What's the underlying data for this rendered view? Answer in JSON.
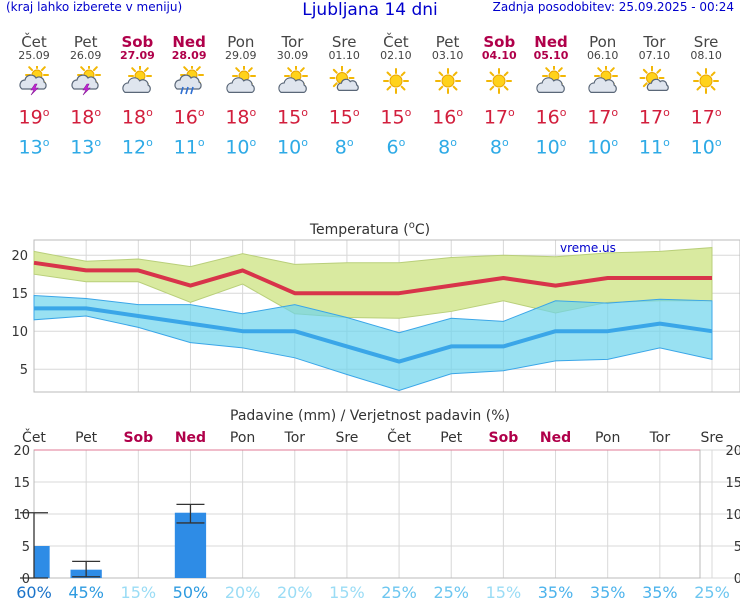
{
  "header": {
    "left_note": "(kraj lahko izberete v meniju)",
    "title": "Ljubljana 14 dni",
    "last_update": "Zadnja posodobitev: 25.09.2025 - 00:24"
  },
  "days": [
    {
      "name": "Čet",
      "date": "25.09",
      "weekend": false,
      "icon": "sun-cloud-thunder-icon",
      "tmax": "19",
      "tmin": "13"
    },
    {
      "name": "Pet",
      "date": "26.09",
      "weekend": false,
      "icon": "sun-cloud-thunder-icon",
      "tmax": "18",
      "tmin": "13"
    },
    {
      "name": "Sob",
      "date": "27.09",
      "weekend": true,
      "icon": "sun-cloud-icon",
      "tmax": "18",
      "tmin": "12"
    },
    {
      "name": "Ned",
      "date": "28.09",
      "weekend": true,
      "icon": "sun-cloud-rain-icon",
      "tmax": "16",
      "tmin": "11"
    },
    {
      "name": "Pon",
      "date": "29.09",
      "weekend": false,
      "icon": "sun-cloud-icon",
      "tmax": "18",
      "tmin": "10"
    },
    {
      "name": "Tor",
      "date": "30.09",
      "weekend": false,
      "icon": "sun-cloud-icon",
      "tmax": "15",
      "tmin": "10"
    },
    {
      "name": "Sre",
      "date": "01.10",
      "weekend": false,
      "icon": "sun-small-cloud-icon",
      "tmax": "15",
      "tmin": "8"
    },
    {
      "name": "Čet",
      "date": "02.10",
      "weekend": false,
      "icon": "sun-icon",
      "tmax": "15",
      "tmin": "6"
    },
    {
      "name": "Pet",
      "date": "03.10",
      "weekend": false,
      "icon": "sun-icon",
      "tmax": "16",
      "tmin": "8"
    },
    {
      "name": "Sob",
      "date": "04.10",
      "weekend": true,
      "icon": "sun-icon",
      "tmax": "17",
      "tmin": "8"
    },
    {
      "name": "Ned",
      "date": "05.10",
      "weekend": true,
      "icon": "sun-cloud-icon",
      "tmax": "16",
      "tmin": "10"
    },
    {
      "name": "Pon",
      "date": "06.10",
      "weekend": false,
      "icon": "sun-cloud-icon",
      "tmax": "17",
      "tmin": "10"
    },
    {
      "name": "Tor",
      "date": "07.10",
      "weekend": false,
      "icon": "sun-small-cloud-icon",
      "tmax": "17",
      "tmin": "11"
    },
    {
      "name": "Sre",
      "date": "08.10",
      "weekend": false,
      "icon": "sun-icon",
      "tmax": "17",
      "tmin": "10"
    }
  ],
  "degree_symbol": "o",
  "chart_data": [
    {
      "type": "line",
      "title": "Temperatura (°C)",
      "title_main": "Temperatura (",
      "title_unit_sup": "o",
      "title_unit_end": "C)",
      "watermark": "vreme.us",
      "ylim": [
        2,
        22
      ],
      "yticks": [
        5,
        10,
        15,
        20
      ],
      "grid": true,
      "x": [
        0,
        1,
        2,
        3,
        4,
        5,
        6,
        7,
        8,
        9,
        10,
        11,
        12,
        13
      ],
      "series": [
        {
          "name": "max",
          "color": "#d8344a",
          "values": [
            19,
            18,
            18,
            16,
            18,
            15,
            15,
            15,
            16,
            17,
            16,
            17,
            17,
            17
          ]
        },
        {
          "name": "min",
          "color": "#3aa6e8",
          "values": [
            13,
            13,
            12,
            11,
            10,
            10,
            8,
            6,
            8,
            8,
            10,
            10,
            11,
            10
          ]
        },
        {
          "name": "max-upper",
          "values": [
            20.5,
            19.2,
            19.5,
            18.5,
            20.2,
            18.8,
            19,
            19,
            19.7,
            20,
            19.8,
            20.3,
            20.5,
            21
          ]
        },
        {
          "name": "max-lower",
          "values": [
            17.5,
            16.5,
            16.5,
            13.8,
            16.2,
            12.3,
            11.8,
            11.7,
            12.6,
            14,
            12.4,
            13.8,
            14,
            14
          ]
        },
        {
          "name": "min-upper",
          "values": [
            14.7,
            14.3,
            13.5,
            13.5,
            12.3,
            13.5,
            11.8,
            9.8,
            11.7,
            11.3,
            14,
            13.7,
            14.2,
            14
          ]
        },
        {
          "name": "min-lower",
          "values": [
            11.5,
            12,
            10.5,
            8.5,
            7.8,
            6.5,
            4.3,
            2.2,
            4.4,
            4.8,
            6.1,
            6.3,
            7.8,
            6.3
          ]
        }
      ]
    },
    {
      "type": "bar",
      "title": "Padavine (mm) / Verjetnost padavin (%)",
      "ylim": [
        0,
        20
      ],
      "yticks": [
        0,
        5,
        10,
        15,
        20
      ],
      "grid": true,
      "day_labels": [
        "Čet",
        "Pet",
        "Sob",
        "Ned",
        "Pon",
        "Tor",
        "Sre",
        "Čet",
        "Pet",
        "Sob",
        "Ned",
        "Pon",
        "Tor",
        "Sre"
      ],
      "weekend": [
        false,
        false,
        true,
        true,
        false,
        false,
        false,
        false,
        false,
        true,
        true,
        false,
        false,
        false
      ],
      "values": [
        5,
        1.3,
        0,
        10.2,
        0,
        0,
        0,
        0,
        0,
        0,
        0,
        0,
        0,
        0
      ],
      "error_low": [
        0,
        0.2,
        0,
        8.6,
        0,
        0,
        0,
        0,
        0,
        0,
        0,
        0,
        0,
        0
      ],
      "error_high": [
        10.2,
        2.6,
        0,
        11.5,
        0,
        0,
        0,
        0,
        0,
        0,
        0,
        0,
        0,
        0
      ],
      "probabilities": [
        "60%",
        "45%",
        "15%",
        "50%",
        "20%",
        "20%",
        "15%",
        "25%",
        "25%",
        "15%",
        "35%",
        "35%",
        "35%",
        "25%"
      ],
      "bar_color": "#2e8ce6"
    }
  ]
}
